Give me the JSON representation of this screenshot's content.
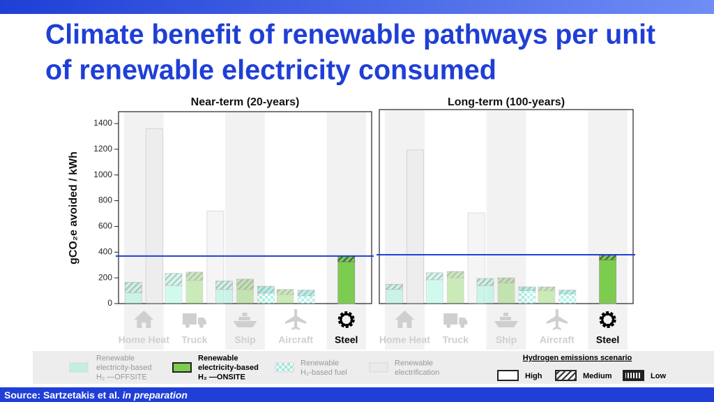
{
  "title": [
    "Climate benefit of renewable pathways per unit",
    "of renewable electricity consumed"
  ],
  "chart_data": [
    {
      "type": "bar",
      "title": "Near-term (20-years)",
      "categories": [
        "Home Heat",
        "Truck",
        "Ship",
        "Aircraft",
        "Steel"
      ],
      "ylabel": "gCO₂e avoided / kWh",
      "ylim": [
        0,
        1400
      ],
      "yticks": [
        0,
        200,
        400,
        600,
        800,
        1000,
        1200,
        1400
      ],
      "reference_line": 370,
      "highlight_index": 4,
      "series": [
        {
          "color": "#8ef5d6",
          "values": [
            85,
            140,
            110,
            null,
            null
          ],
          "hatch_values": [
            80,
            95,
            65,
            null,
            null
          ]
        },
        {
          "color": "#7ccd4f",
          "values": [
            null,
            180,
            110,
            70,
            325
          ],
          "hatch_values": [
            null,
            65,
            80,
            40,
            45
          ]
        },
        {
          "color": "#3de8cf",
          "pattern": "checker",
          "values": [
            null,
            null,
            80,
            60,
            null
          ],
          "hatch_values": [
            null,
            null,
            55,
            45,
            null
          ]
        },
        {
          "color": "#e8e8e8",
          "values": [
            1360,
            720,
            null,
            null,
            null
          ]
        }
      ]
    },
    {
      "type": "bar",
      "title": "Long-term (100-years)",
      "categories": [
        "Home Heat",
        "Truck",
        "Ship",
        "Aircraft",
        "Steel"
      ],
      "ylim": [
        0,
        1400
      ],
      "reference_line": 380,
      "highlight_index": 4,
      "series": [
        {
          "color": "#8ef5d6",
          "values": [
            110,
            185,
            140,
            null,
            null
          ],
          "hatch_values": [
            40,
            55,
            55,
            null,
            null
          ]
        },
        {
          "color": "#7ccd4f",
          "values": [
            null,
            200,
            160,
            100,
            340
          ],
          "hatch_values": [
            null,
            50,
            40,
            30,
            35
          ]
        },
        {
          "color": "#3de8cf",
          "pattern": "checker",
          "values": [
            null,
            null,
            100,
            75,
            null
          ],
          "hatch_values": [
            null,
            null,
            30,
            30,
            null
          ]
        },
        {
          "color": "#e8e8e8",
          "values": [
            1195,
            705,
            null,
            null,
            null
          ]
        }
      ]
    }
  ],
  "legend": {
    "highlight_index": 1,
    "items": [
      {
        "lines": [
          "Renewable",
          "electricity-based",
          "H₂ —OFFSITE"
        ]
      },
      {
        "lines": [
          "Renewable",
          "electricity-based",
          "H₂ —ONSITE"
        ]
      },
      {
        "lines": [
          "Renewable",
          "H₂-based fuel"
        ]
      },
      {
        "lines": [
          "Renewable",
          "electrification"
        ]
      }
    ],
    "scenario": {
      "title": "Hydrogen emissions scenario",
      "items": [
        "High",
        "Medium",
        "Low"
      ]
    }
  },
  "source": {
    "text": "Source: Sartzetakis et al.",
    "note": "in preparation"
  }
}
